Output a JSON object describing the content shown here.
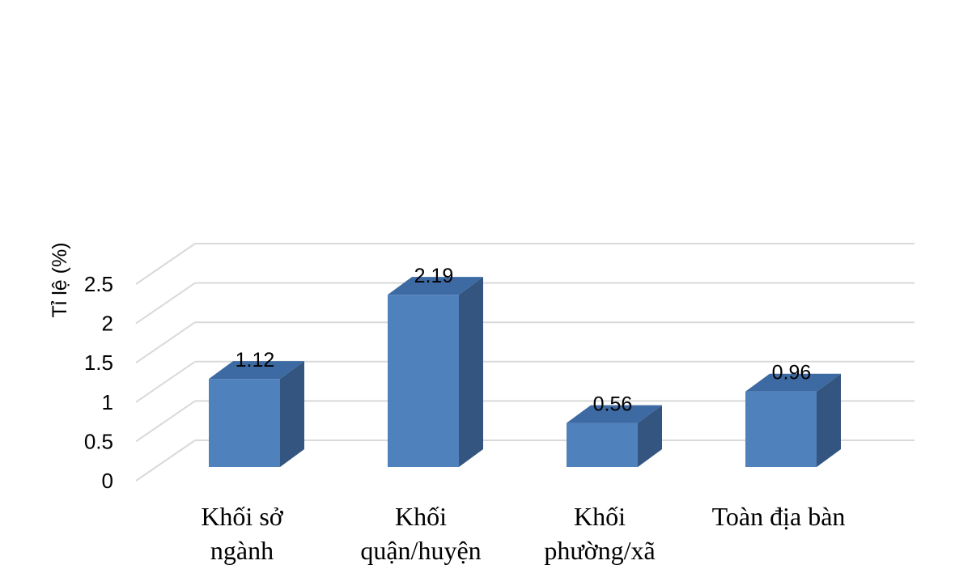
{
  "chart_data": {
    "type": "bar",
    "title": "",
    "xlabel": "",
    "ylabel": "Tỉ lệ (%)",
    "categories": [
      [
        "Khối sở",
        "ngành"
      ],
      [
        "Khối",
        "quận/huyện"
      ],
      [
        "Khối",
        "phường/xã"
      ],
      [
        "Toàn địa bàn"
      ]
    ],
    "values": [
      1.12,
      2.19,
      0.56,
      0.96
    ],
    "value_labels": [
      "1.12",
      "2.19",
      "0.56",
      "0.96"
    ],
    "yticks": [
      "0",
      "0.5",
      "1",
      "1.5",
      "2",
      "2.5"
    ],
    "ylim": [
      0,
      2.5
    ],
    "grid": true,
    "style": "3d-column",
    "colors": {
      "front": "#4f81bd",
      "top": "#3d6aa3",
      "side": "#34557f",
      "grid": "#d9d9d9"
    }
  }
}
